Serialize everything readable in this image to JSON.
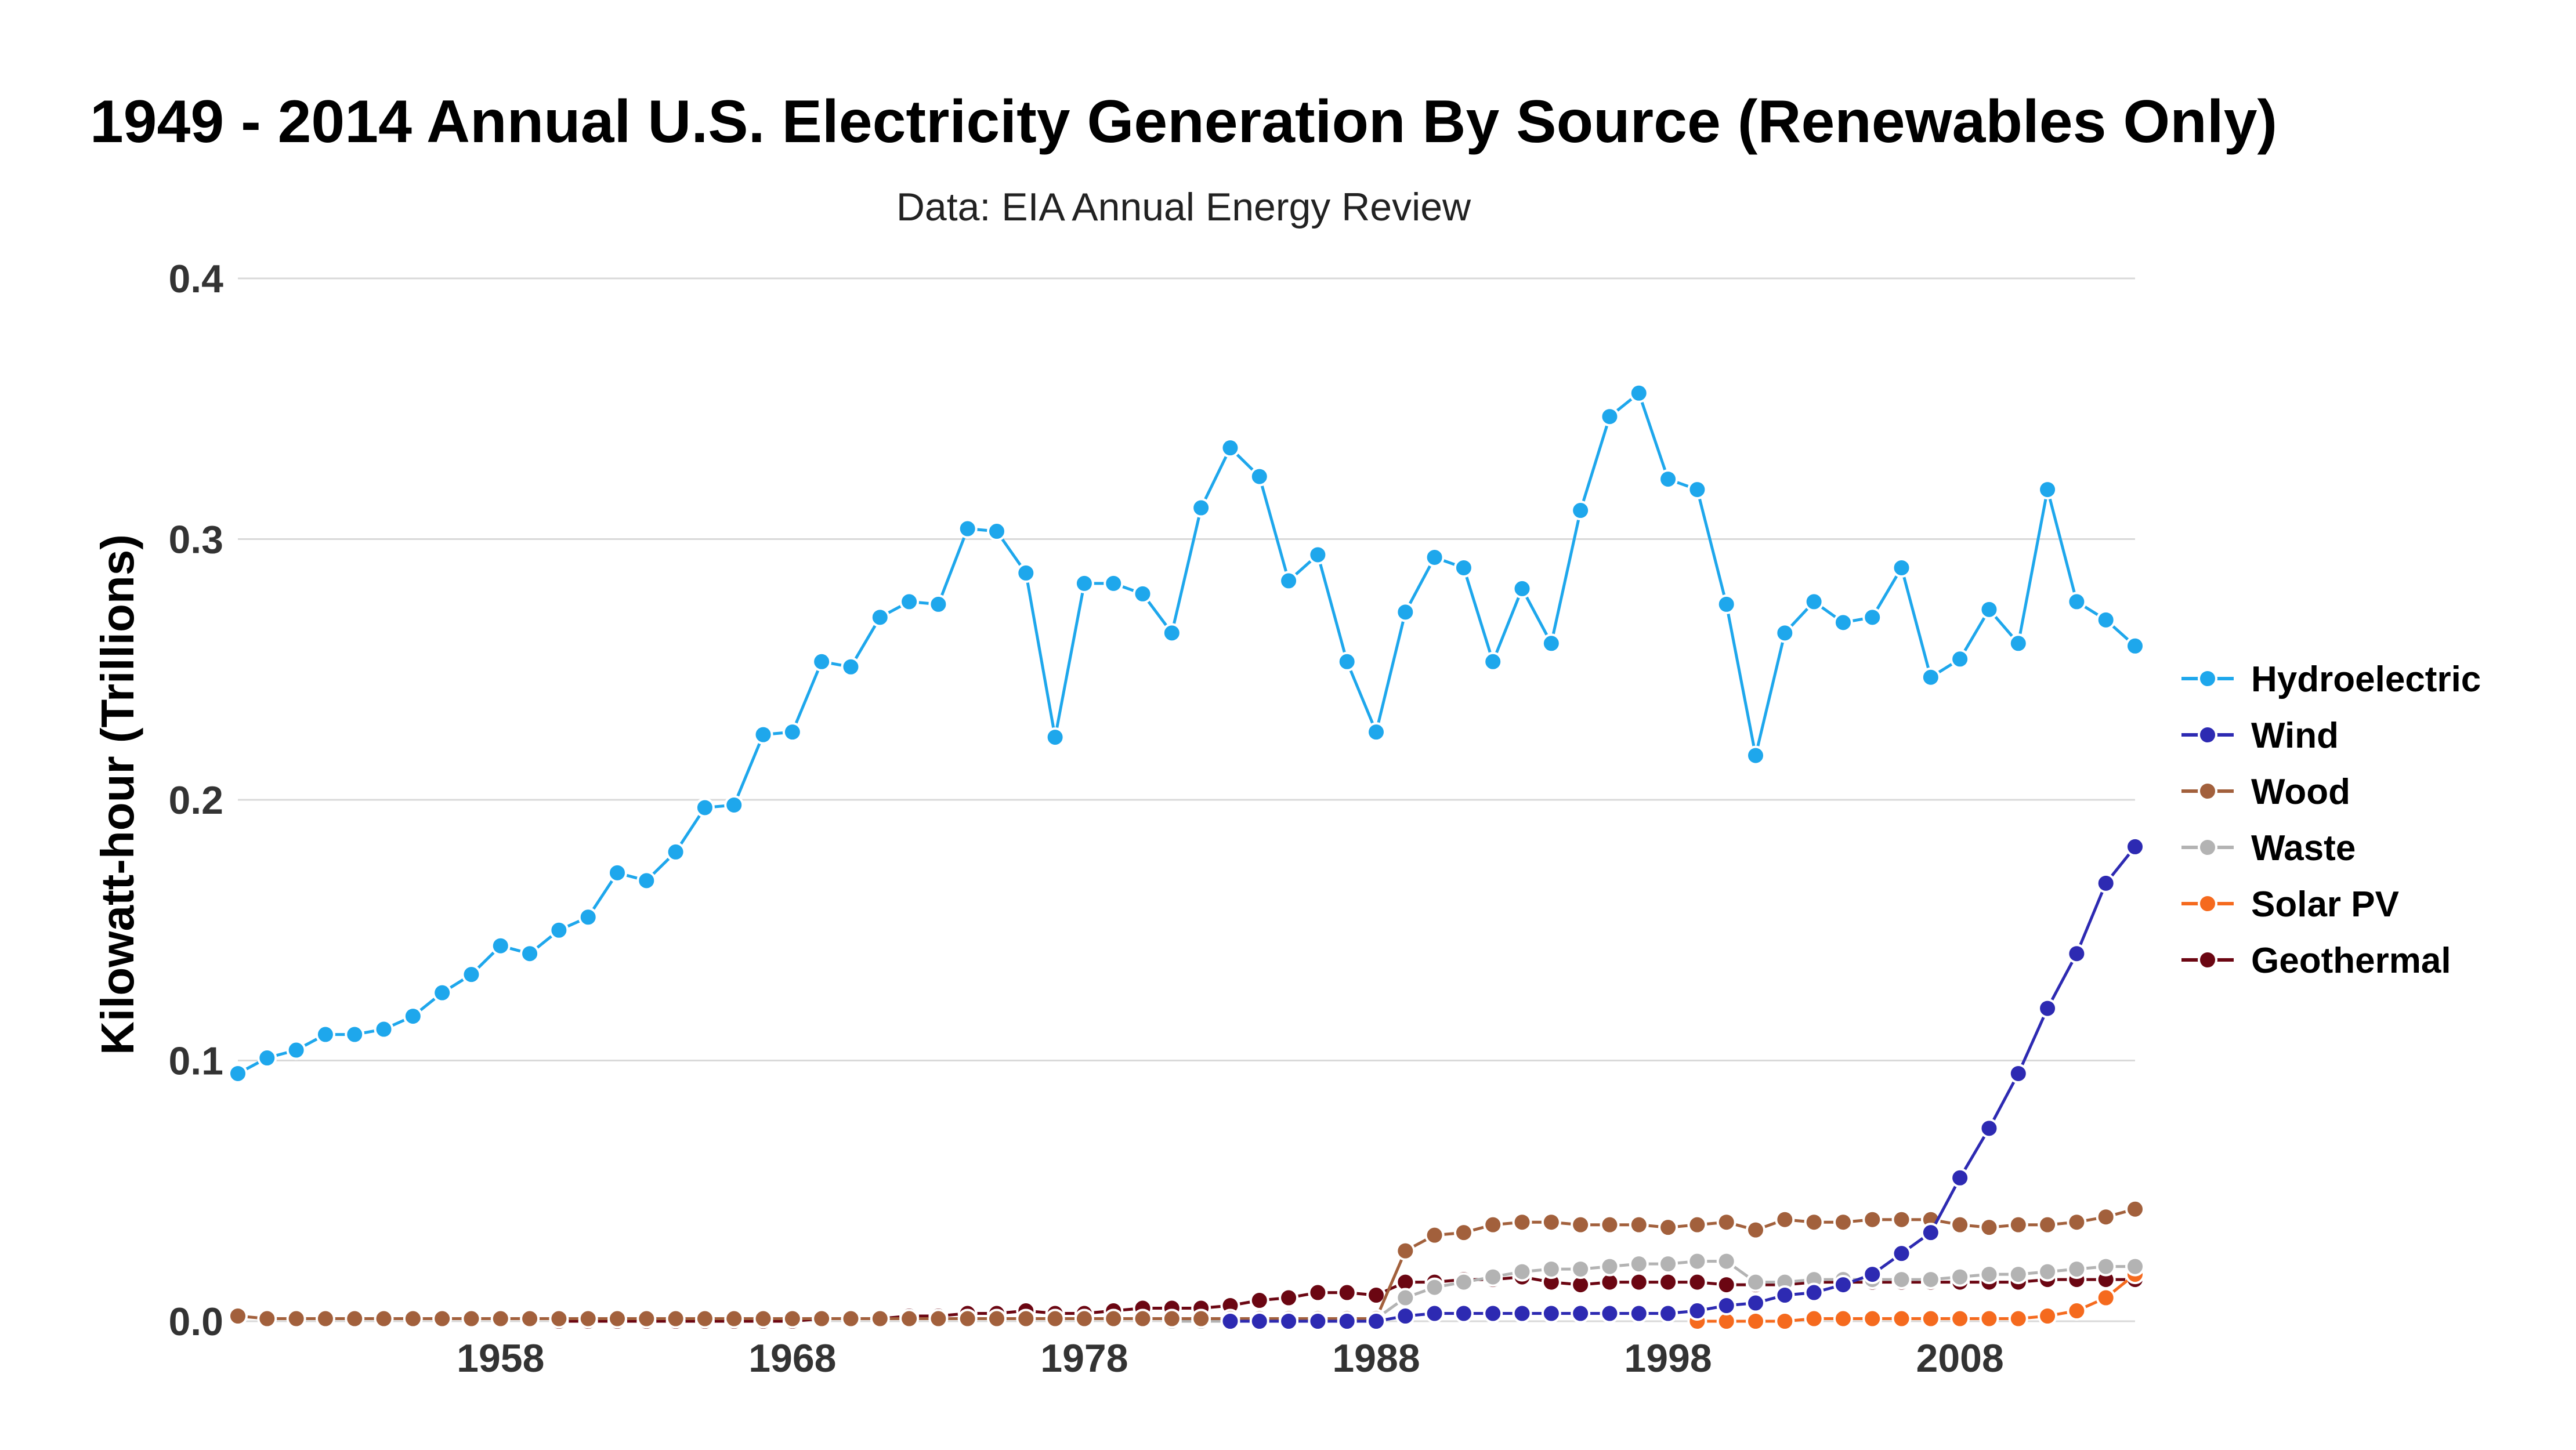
{
  "chart_data": {
    "type": "line",
    "title": "1949 - 2014 Annual U.S. Electricity Generation By Source (Renewables Only)",
    "subtitle": "Data: EIA Annual Energy Review",
    "xlabel": "",
    "ylabel": "Kilowatt-hour (Trillions)",
    "xlim": [
      1949,
      2014
    ],
    "ylim": [
      0,
      0.4
    ],
    "x_ticks": [
      "1958",
      "1968",
      "1978",
      "1988",
      "1998",
      "2008"
    ],
    "y_ticks": [
      "0.0",
      "0.1",
      "0.2",
      "0.3",
      "0.4"
    ],
    "grid": true,
    "legend_position": "right",
    "x": [
      1949,
      1950,
      1951,
      1952,
      1953,
      1954,
      1955,
      1956,
      1957,
      1958,
      1959,
      1960,
      1961,
      1962,
      1963,
      1964,
      1965,
      1966,
      1967,
      1968,
      1969,
      1970,
      1971,
      1972,
      1973,
      1974,
      1975,
      1976,
      1977,
      1978,
      1979,
      1980,
      1981,
      1982,
      1983,
      1984,
      1985,
      1986,
      1987,
      1988,
      1989,
      1990,
      1991,
      1992,
      1993,
      1994,
      1995,
      1996,
      1997,
      1998,
      1999,
      2000,
      2001,
      2002,
      2003,
      2004,
      2005,
      2006,
      2007,
      2008,
      2009,
      2010,
      2011,
      2012,
      2013,
      2014
    ],
    "series": [
      {
        "name": "Hydroelectric",
        "color": "#1ea7ec",
        "values": [
          0.095,
          0.101,
          0.104,
          0.11,
          0.11,
          0.112,
          0.117,
          0.126,
          0.133,
          0.144,
          0.141,
          0.15,
          0.155,
          0.172,
          0.169,
          0.18,
          0.197,
          0.198,
          0.225,
          0.226,
          0.253,
          0.251,
          0.27,
          0.276,
          0.275,
          0.304,
          0.303,
          0.287,
          0.224,
          0.283,
          0.283,
          0.279,
          0.264,
          0.312,
          0.335,
          0.324,
          0.284,
          0.294,
          0.253,
          0.226,
          0.272,
          0.293,
          0.289,
          0.253,
          0.281,
          0.26,
          0.311,
          0.347,
          0.356,
          0.323,
          0.319,
          0.275,
          0.217,
          0.264,
          0.276,
          0.268,
          0.27,
          0.289,
          0.247,
          0.254,
          0.273,
          0.26,
          0.319,
          0.276,
          0.269,
          0.259
        ]
      },
      {
        "name": "Wind",
        "color": "#2d2ab2",
        "values": [
          null,
          null,
          null,
          null,
          null,
          null,
          null,
          null,
          null,
          null,
          null,
          null,
          null,
          null,
          null,
          null,
          null,
          null,
          null,
          null,
          null,
          null,
          null,
          null,
          null,
          null,
          null,
          null,
          null,
          null,
          null,
          null,
          null,
          null,
          0.0,
          0.0,
          0.0,
          0.0,
          0.0,
          0.0,
          0.002,
          0.003,
          0.003,
          0.003,
          0.003,
          0.003,
          0.003,
          0.003,
          0.003,
          0.003,
          0.004,
          0.006,
          0.007,
          0.01,
          0.011,
          0.014,
          0.018,
          0.026,
          0.034,
          0.055,
          0.074,
          0.095,
          0.12,
          0.141,
          0.168,
          0.182
        ]
      },
      {
        "name": "Wood",
        "color": "#a2603c",
        "values": [
          0.002,
          0.001,
          0.001,
          0.001,
          0.001,
          0.001,
          0.001,
          0.001,
          0.001,
          0.001,
          0.001,
          0.001,
          0.001,
          0.001,
          0.001,
          0.001,
          0.001,
          0.001,
          0.001,
          0.001,
          0.001,
          0.001,
          0.001,
          0.001,
          0.001,
          0.001,
          0.001,
          0.001,
          0.001,
          0.001,
          0.001,
          0.001,
          0.001,
          0.001,
          0.001,
          0.001,
          0.001,
          0.001,
          0.001,
          0.001,
          0.027,
          0.033,
          0.034,
          0.037,
          0.038,
          0.038,
          0.037,
          0.037,
          0.037,
          0.036,
          0.037,
          0.038,
          0.035,
          0.039,
          0.038,
          0.038,
          0.039,
          0.039,
          0.039,
          0.037,
          0.036,
          0.037,
          0.037,
          0.038,
          0.04,
          0.043
        ]
      },
      {
        "name": "Waste",
        "color": "#b3b3b3",
        "values": [
          null,
          null,
          null,
          null,
          null,
          null,
          null,
          null,
          null,
          null,
          null,
          null,
          null,
          null,
          null,
          null,
          null,
          null,
          null,
          null,
          null,
          null,
          null,
          null,
          null,
          null,
          null,
          null,
          null,
          null,
          null,
          null,
          0.0,
          0.0,
          0.0,
          0.0,
          0.0,
          0.0,
          0.0,
          0.001,
          0.009,
          0.013,
          0.015,
          0.017,
          0.019,
          0.02,
          0.02,
          0.021,
          0.022,
          0.022,
          0.023,
          0.023,
          0.015,
          0.015,
          0.016,
          0.016,
          0.016,
          0.016,
          0.016,
          0.017,
          0.018,
          0.018,
          0.019,
          0.02,
          0.021,
          0.021
        ]
      },
      {
        "name": "Solar PV",
        "color": "#f56a1e",
        "values": [
          null,
          null,
          null,
          null,
          null,
          null,
          null,
          null,
          null,
          null,
          null,
          null,
          null,
          null,
          null,
          null,
          null,
          null,
          null,
          null,
          null,
          null,
          null,
          null,
          null,
          null,
          null,
          null,
          null,
          null,
          null,
          null,
          null,
          null,
          null,
          null,
          null,
          null,
          null,
          null,
          null,
          null,
          null,
          null,
          null,
          null,
          null,
          null,
          null,
          null,
          0.0,
          0.0,
          0.0,
          0.0,
          0.001,
          0.001,
          0.001,
          0.001,
          0.001,
          0.001,
          0.001,
          0.001,
          0.002,
          0.004,
          0.009,
          0.018
        ]
      },
      {
        "name": "Geothermal",
        "color": "#6b0612",
        "values": [
          null,
          null,
          null,
          null,
          null,
          null,
          null,
          null,
          null,
          null,
          null,
          0.0,
          0.0,
          0.0,
          0.0,
          0.0,
          0.0,
          0.0,
          0.0,
          0.0,
          0.001,
          0.001,
          0.001,
          0.002,
          0.002,
          0.003,
          0.003,
          0.004,
          0.003,
          0.003,
          0.004,
          0.005,
          0.005,
          0.005,
          0.006,
          0.008,
          0.009,
          0.011,
          0.011,
          0.01,
          0.015,
          0.015,
          0.016,
          0.016,
          0.017,
          0.015,
          0.014,
          0.015,
          0.015,
          0.015,
          0.015,
          0.014,
          0.014,
          0.014,
          0.015,
          0.015,
          0.015,
          0.015,
          0.015,
          0.015,
          0.015,
          0.015,
          0.016,
          0.016,
          0.016,
          0.016
        ]
      }
    ]
  }
}
